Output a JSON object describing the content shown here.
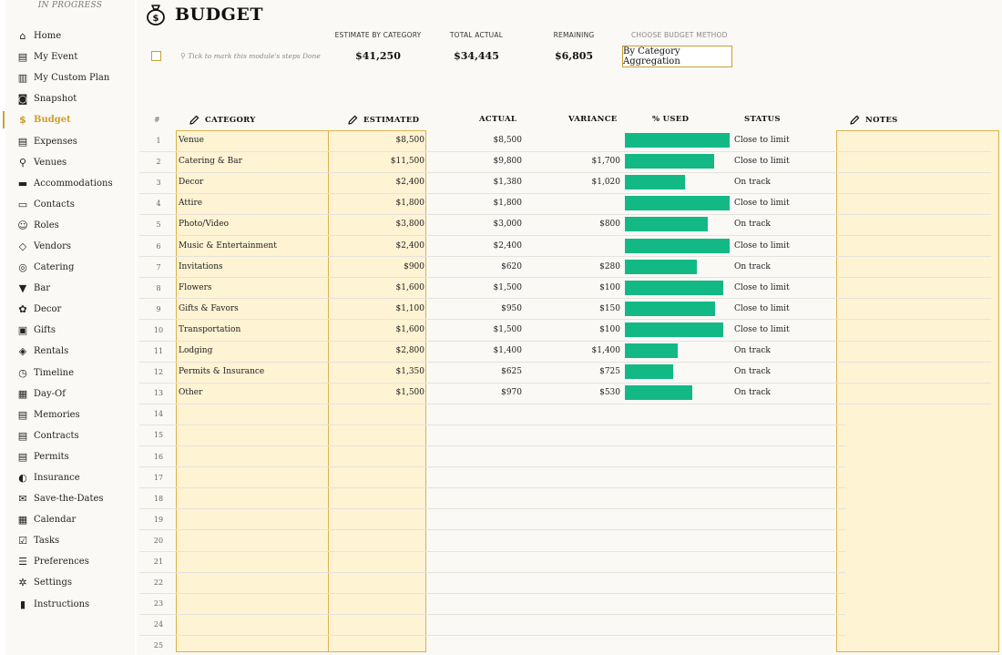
{
  "sidebar": {
    "status": "IN PROGRESS",
    "items": [
      {
        "label": "Home",
        "icon": "home-icon",
        "glyph": "⌂"
      },
      {
        "label": "My Event",
        "icon": "document-icon",
        "glyph": "▤"
      },
      {
        "label": "My Custom Plan",
        "icon": "plan-icon",
        "glyph": "▥"
      },
      {
        "label": "Snapshot",
        "icon": "camera-icon",
        "glyph": "◙"
      },
      {
        "label": "Budget",
        "icon": "money-bag-icon",
        "glyph": "$",
        "active": true
      },
      {
        "label": "Expenses",
        "icon": "receipt-icon",
        "glyph": "▤"
      },
      {
        "label": "Venues",
        "icon": "map-pin-icon",
        "glyph": "⚲"
      },
      {
        "label": "Accommodations",
        "icon": "bed-icon",
        "glyph": "▬"
      },
      {
        "label": "Contacts",
        "icon": "contact-card-icon",
        "glyph": "▭"
      },
      {
        "label": "Roles",
        "icon": "people-icon",
        "glyph": "☺"
      },
      {
        "label": "Vendors",
        "icon": "tag-icon",
        "glyph": "◇"
      },
      {
        "label": "Catering",
        "icon": "food-icon",
        "glyph": "◎"
      },
      {
        "label": "Bar",
        "icon": "wine-glass-icon",
        "glyph": "▼"
      },
      {
        "label": "Decor",
        "icon": "palette-icon",
        "glyph": "✿"
      },
      {
        "label": "Gifts",
        "icon": "gift-icon",
        "glyph": "▣"
      },
      {
        "label": "Rentals",
        "icon": "box-icon",
        "glyph": "◈"
      },
      {
        "label": "Timeline",
        "icon": "clock-icon",
        "glyph": "◷"
      },
      {
        "label": "Day-Of",
        "icon": "calendar-day-icon",
        "glyph": "▦"
      },
      {
        "label": "Memories",
        "icon": "photo-stack-icon",
        "glyph": "▤"
      },
      {
        "label": "Contracts",
        "icon": "contract-icon",
        "glyph": "▤"
      },
      {
        "label": "Permits",
        "icon": "permit-icon",
        "glyph": "▤"
      },
      {
        "label": "Insurance",
        "icon": "shield-icon",
        "glyph": "◐"
      },
      {
        "label": "Save-the-Dates",
        "icon": "envelope-icon",
        "glyph": "✉"
      },
      {
        "label": "Calendar",
        "icon": "calendar-icon",
        "glyph": "▦"
      },
      {
        "label": "Tasks",
        "icon": "checkbox-icon",
        "glyph": "☑"
      },
      {
        "label": "Preferences",
        "icon": "sliders-icon",
        "glyph": "☰"
      },
      {
        "label": "Settings",
        "icon": "gear-icon",
        "glyph": "✲"
      },
      {
        "label": "Instructions",
        "icon": "book-icon",
        "glyph": "▮"
      }
    ]
  },
  "header": {
    "title": "BUDGET",
    "icon": "money-bag-icon"
  },
  "summary": {
    "estimate_label": "ESTIMATE BY CATEGORY",
    "estimate_value": "$41,250",
    "actual_label": "TOTAL ACTUAL",
    "actual_value": "$34,445",
    "remaining_label": "REMAINING",
    "remaining_value": "$6,805",
    "method_label": "CHOOSE BUDGET METHOD",
    "method_value": "By Category Aggregation",
    "done_hint": "Tick to mark this module's steps Done"
  },
  "table": {
    "headers": {
      "num": "#",
      "category": "CATEGORY",
      "estimated": "ESTIMATED",
      "actual": "ACTUAL",
      "variance": "VARIANCE",
      "used": "% USED",
      "status": "STATUS",
      "notes": "NOTES"
    },
    "rows": [
      {
        "num": "1",
        "category": "Venue",
        "estimated": "$8,500",
        "actual": "$8,500",
        "variance": "",
        "used": 1.0,
        "status": "Close to limit"
      },
      {
        "num": "2",
        "category": "Catering & Bar",
        "estimated": "$11,500",
        "actual": "$9,800",
        "variance": "$1,700",
        "used": 0.852,
        "status": "Close to limit"
      },
      {
        "num": "3",
        "category": "Decor",
        "estimated": "$2,400",
        "actual": "$1,380",
        "variance": "$1,020",
        "used": 0.575,
        "status": "On track"
      },
      {
        "num": "4",
        "category": "Attire",
        "estimated": "$1,800",
        "actual": "$1,800",
        "variance": "",
        "used": 1.0,
        "status": "Close to limit"
      },
      {
        "num": "5",
        "category": "Photo/Video",
        "estimated": "$3,800",
        "actual": "$3,000",
        "variance": "$800",
        "used": 0.789,
        "status": "On track"
      },
      {
        "num": "6",
        "category": "Music & Entertainment",
        "estimated": "$2,400",
        "actual": "$2,400",
        "variance": "",
        "used": 1.0,
        "status": "Close to limit"
      },
      {
        "num": "7",
        "category": "Invitations",
        "estimated": "$900",
        "actual": "$620",
        "variance": "$280",
        "used": 0.689,
        "status": "On track"
      },
      {
        "num": "8",
        "category": "Flowers",
        "estimated": "$1,600",
        "actual": "$1,500",
        "variance": "$100",
        "used": 0.9375,
        "status": "Close to limit"
      },
      {
        "num": "9",
        "category": "Gifts & Favors",
        "estimated": "$1,100",
        "actual": "$950",
        "variance": "$150",
        "used": 0.864,
        "status": "Close to limit"
      },
      {
        "num": "10",
        "category": "Transportation",
        "estimated": "$1,600",
        "actual": "$1,500",
        "variance": "$100",
        "used": 0.9375,
        "status": "Close to limit"
      },
      {
        "num": "11",
        "category": "Lodging",
        "estimated": "$2,800",
        "actual": "$1,400",
        "variance": "$1,400",
        "used": 0.5,
        "status": "On track"
      },
      {
        "num": "12",
        "category": "Permits & Insurance",
        "estimated": "$1,350",
        "actual": "$625",
        "variance": "$725",
        "used": 0.463,
        "status": "On track"
      },
      {
        "num": "13",
        "category": "Other",
        "estimated": "$1,500",
        "actual": "$970",
        "variance": "$530",
        "used": 0.647,
        "status": "On track"
      },
      {
        "num": "14",
        "category": "",
        "estimated": "",
        "actual": "",
        "variance": "",
        "used": 0,
        "status": ""
      },
      {
        "num": "15",
        "category": "",
        "estimated": "",
        "actual": "",
        "variance": "",
        "used": 0,
        "status": ""
      },
      {
        "num": "16",
        "category": "",
        "estimated": "",
        "actual": "",
        "variance": "",
        "used": 0,
        "status": ""
      },
      {
        "num": "17",
        "category": "",
        "estimated": "",
        "actual": "",
        "variance": "",
        "used": 0,
        "status": ""
      },
      {
        "num": "18",
        "category": "",
        "estimated": "",
        "actual": "",
        "variance": "",
        "used": 0,
        "status": ""
      },
      {
        "num": "19",
        "category": "",
        "estimated": "",
        "actual": "",
        "variance": "",
        "used": 0,
        "status": ""
      },
      {
        "num": "20",
        "category": "",
        "estimated": "",
        "actual": "",
        "variance": "",
        "used": 0,
        "status": ""
      },
      {
        "num": "21",
        "category": "",
        "estimated": "",
        "actual": "",
        "variance": "",
        "used": 0,
        "status": ""
      },
      {
        "num": "22",
        "category": "",
        "estimated": "",
        "actual": "",
        "variance": "",
        "used": 0,
        "status": ""
      },
      {
        "num": "23",
        "category": "",
        "estimated": "",
        "actual": "",
        "variance": "",
        "used": 0,
        "status": ""
      },
      {
        "num": "24",
        "category": "",
        "estimated": "",
        "actual": "",
        "variance": "",
        "used": 0,
        "status": ""
      },
      {
        "num": "25",
        "category": "",
        "estimated": "",
        "actual": "",
        "variance": "",
        "used": 0,
        "status": ""
      }
    ]
  },
  "colors": {
    "accent": "#c9a030",
    "highlight": "#fef3d3",
    "bar": "#13b985"
  }
}
